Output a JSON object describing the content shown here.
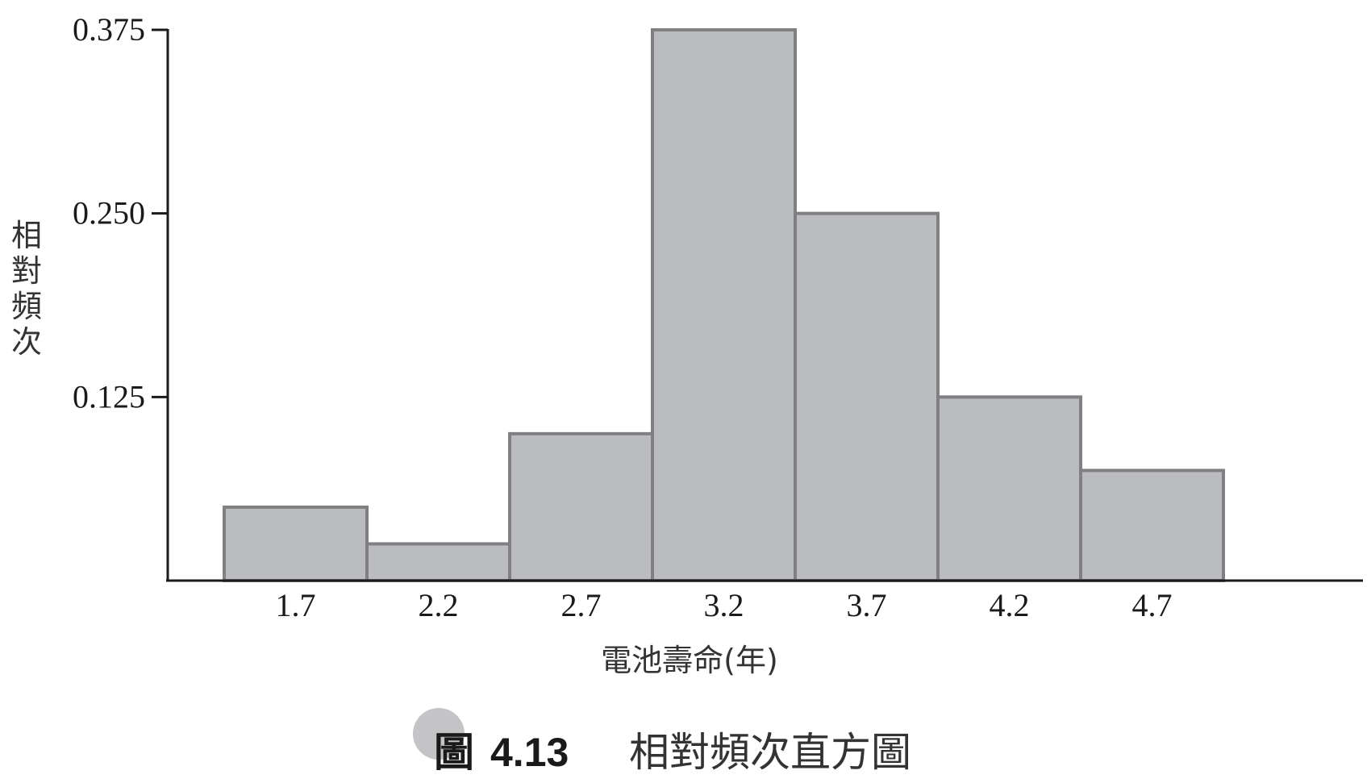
{
  "chart_data": {
    "type": "bar",
    "histogram": true,
    "categories": [
      "1.7",
      "2.2",
      "2.7",
      "3.2",
      "3.7",
      "4.2",
      "4.7"
    ],
    "values": [
      0.05,
      0.025,
      0.1,
      0.375,
      0.25,
      0.125,
      0.075
    ],
    "xlabel": "電池壽命(年)",
    "ylabel": "相對頻次",
    "yticks": [
      "0.125",
      "0.250",
      "0.375"
    ],
    "ytick_values": [
      0.125,
      0.25,
      0.375
    ],
    "ylim": [
      0,
      0.375
    ],
    "grid": false,
    "bar_color": "#bbbcc0",
    "bar_edge_color": "#808083",
    "axis_color": "#1a1a1a"
  },
  "caption": {
    "prefix": "圖",
    "number": "4.13",
    "text": "相對頻次直方圖",
    "badge_color": "#c4c4c7"
  }
}
